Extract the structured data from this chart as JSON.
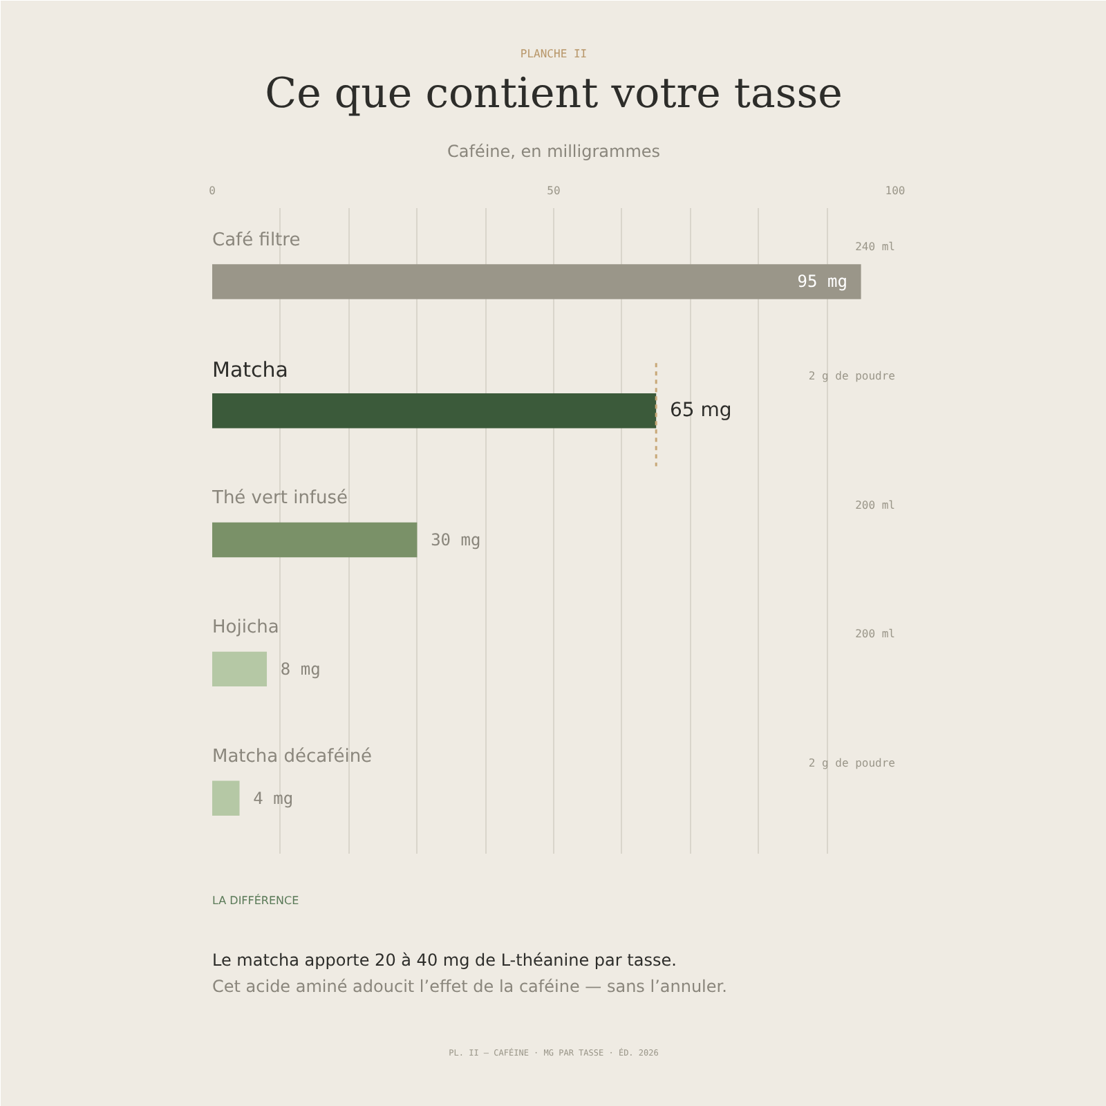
{
  "chart_data": {
    "type": "bar",
    "orientation": "horizontal",
    "title": "Ce que contient votre tasse",
    "subtitle": "Caféine, en milligrammes",
    "categories": [
      "Café filtre",
      "Matcha",
      "Thé vert infusé",
      "Hojicha",
      "Matcha décaféiné"
    ],
    "values": [
      95,
      65,
      30,
      8,
      4
    ],
    "colors": [
      "#9a9689",
      "#3b5a3a",
      "#7a9168",
      "#b5c8a5",
      "#b5c8a5"
    ],
    "value_labels": [
      "95 mg",
      "65 mg",
      "30 mg",
      "8 mg",
      "4 mg"
    ],
    "xlim": [
      0,
      100
    ],
    "xticks": [
      0,
      {
        "value": 10,
        "label": null
      },
      {
        "value": 20,
        "label": null
      },
      {
        "value": 30,
        "label": null
      },
      {
        "value": 40,
        "label": null
      },
      50,
      {
        "value": 60,
        "label": null
      },
      {
        "value": 70,
        "label": null
      },
      {
        "value": 80,
        "label": null
      },
      {
        "value": 90,
        "label": null
      },
      100
    ],
    "grid": "x",
    "ref_lines": [
      {
        "axis": "x",
        "value": 65,
        "color": "#c8a878",
        "line_style": "dashed"
      }
    ],
    "annotations": [
      "PLANCHE II",
      "240 ml",
      "2 g de poudre",
      "200 ml",
      "200 ml",
      "2 g de poudre",
      "LA DIFFÉRENCE",
      "Le matcha apporte 20 à 40 mg de L-théanine par tasse.",
      "Cet acide aminé adoucit l’effet de la caféine — sans l’annuler.",
      "PL. II — CAFÉINE · MG PAR TASSE · ÉD. 2026"
    ]
  }
}
